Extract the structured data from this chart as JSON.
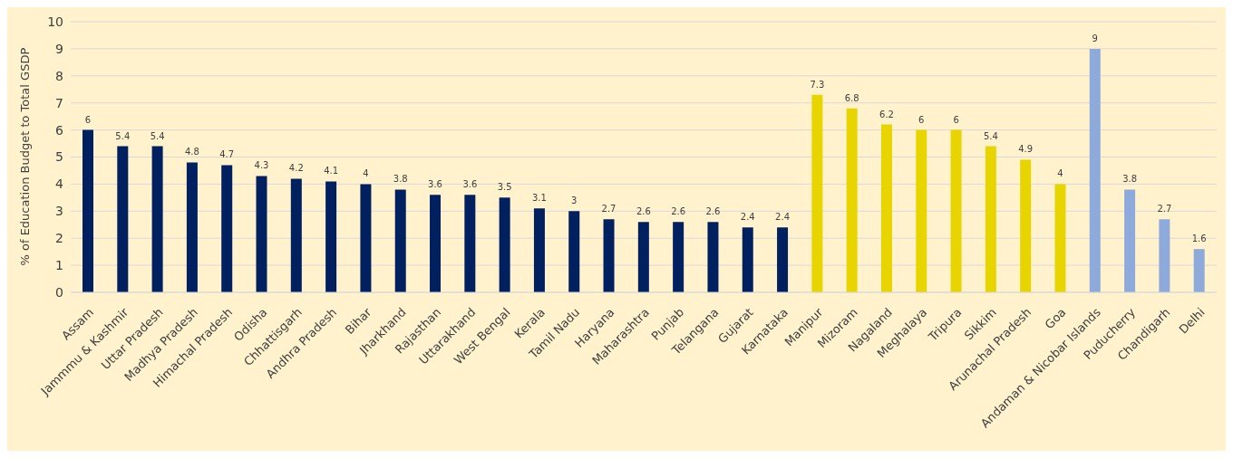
{
  "chart_data": {
    "type": "bar",
    "ylabel": "% of Education Budget to Total GSDP",
    "categories": [
      "Assam",
      "Jammmu & Kashmir",
      "Uttar Pradesh",
      "Madhya Pradesh",
      "Himachal Pradesh",
      "Odisha",
      "Chhattisgarh",
      "Andhra Pradesh",
      "Bihar",
      "Jharkhand",
      "Rajasthan",
      "Uttarakhand",
      "West Bengal",
      "Kerala",
      "Tamil Nadu",
      "Haryana",
      "Maharashtra",
      "Punjab",
      "Telangana",
      "Gujarat",
      "Karnataka",
      "Manipur",
      "Mizoram",
      "Nagaland",
      "Meghalaya",
      "Tripura",
      "Sikkim",
      "Arunachal Pradesh",
      "Goa",
      "Andaman & Nicobar Islands",
      "Puducherry",
      "Chandigarh",
      "Delhi"
    ],
    "values": [
      6,
      5.4,
      5.4,
      4.8,
      4.7,
      4.3,
      4.2,
      4.1,
      4,
      3.8,
      3.6,
      3.6,
      3.5,
      3.1,
      3,
      2.7,
      2.6,
      2.6,
      2.6,
      2.4,
      2.4,
      7.3,
      6.8,
      6.2,
      6,
      6,
      5.4,
      4.9,
      4,
      9,
      3.8,
      2.7,
      1.6
    ],
    "colors": [
      "#002060",
      "#002060",
      "#002060",
      "#002060",
      "#002060",
      "#002060",
      "#002060",
      "#002060",
      "#002060",
      "#002060",
      "#002060",
      "#002060",
      "#002060",
      "#002060",
      "#002060",
      "#002060",
      "#002060",
      "#002060",
      "#002060",
      "#002060",
      "#002060",
      "#e8d500",
      "#e8d500",
      "#e8d500",
      "#e8d500",
      "#e8d500",
      "#e8d500",
      "#e8d500",
      "#e8d500",
      "#8eaadb",
      "#8eaadb",
      "#8eaadb",
      "#8eaadb"
    ],
    "ylim": [
      0,
      10
    ],
    "yticks": [
      0,
      1,
      2,
      3,
      4,
      5,
      6,
      7,
      8,
      9,
      10
    ],
    "grid": "y",
    "data_labels": true
  }
}
